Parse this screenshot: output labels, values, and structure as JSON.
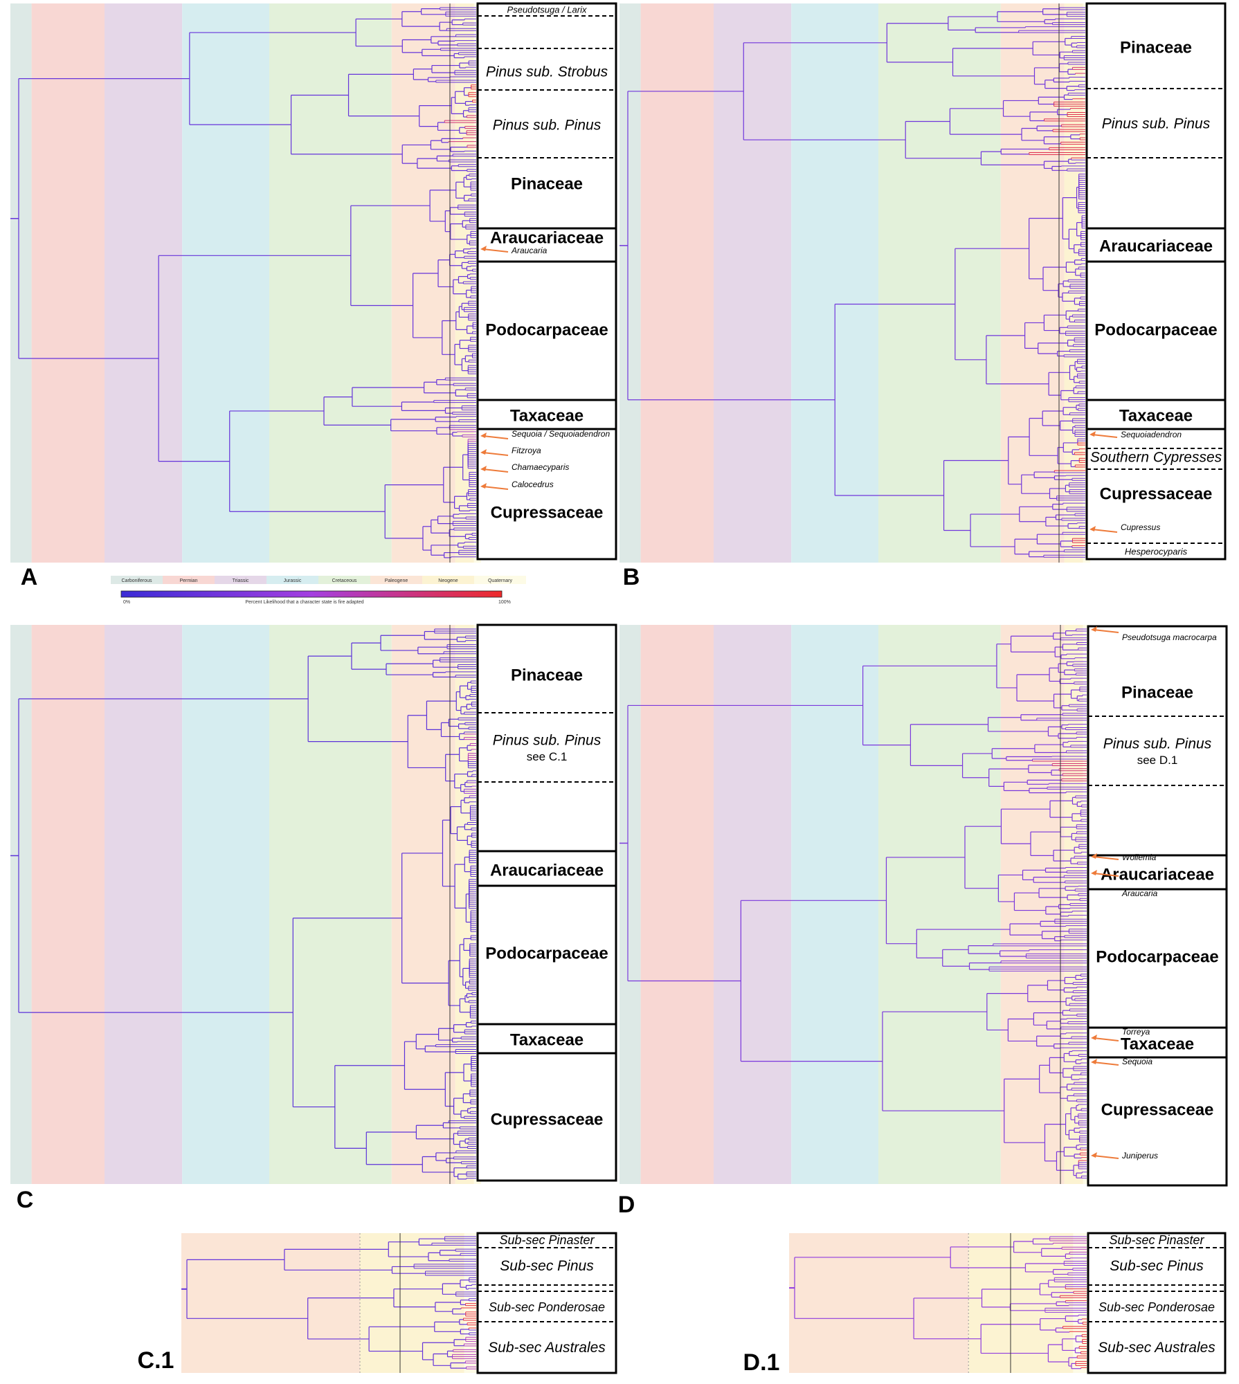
{
  "colors": {
    "carboniferous": "#dde9e6",
    "permian": "#f8d7d3",
    "triassic": "#e5d7e8",
    "jurassic": "#d6edf0",
    "cretaceous": "#e3f1da",
    "paleogene": "#fbe5d6",
    "neogene": "#fcf3d2",
    "quaternary": "#fdfbe6",
    "branch_low": "#3b2bd6",
    "branch_mid": "#a43fe0",
    "branch_high": "#ee2a2a",
    "arrow": "#ee7b3a"
  },
  "legend": {
    "periods": [
      "Carboniferous",
      "Permian",
      "Triassic",
      "Jurassic",
      "Cretaceous",
      "Paleogene",
      "Neogene",
      "Quaternary"
    ],
    "scale_min": "0%",
    "scale_max": "100%",
    "scale_caption": "Percent Likelihood that a character state is fire adapted"
  },
  "panels": [
    {
      "id": "A",
      "letter": "A",
      "clades": [
        {
          "label": "Pseudotsuga / Larix",
          "style": "italic-small"
        },
        {
          "label": "Pinus sub. Strobus",
          "style": "italic"
        },
        {
          "label": "Pinus sub. Pinus",
          "style": "italic"
        },
        {
          "label": "Pinaceae",
          "style": "bold"
        },
        {
          "label": "Araucariaceae",
          "style": "bold"
        },
        {
          "label": "Podocarpaceae",
          "style": "bold"
        },
        {
          "label": "Taxaceae",
          "style": "bold"
        },
        {
          "label": "Cupressaceae",
          "style": "bold"
        }
      ],
      "annotations": [
        "Araucaria",
        "Sequoia / Sequoiadendron",
        "Fitzroya",
        "Chamaecyparis",
        "Calocedrus"
      ]
    },
    {
      "id": "B",
      "letter": "B",
      "clades": [
        {
          "label": "Pinaceae",
          "style": "bold"
        },
        {
          "label": "Pinus sub. Pinus",
          "style": "italic"
        },
        {
          "label": "Araucariaceae",
          "style": "bold"
        },
        {
          "label": "Podocarpaceae",
          "style": "bold"
        },
        {
          "label": "Taxaceae",
          "style": "bold"
        },
        {
          "label": "Southern Cypresses",
          "style": "italic"
        },
        {
          "label": "Cupressaceae",
          "style": "bold"
        },
        {
          "label": "Hesperocyparis",
          "style": "italic-small"
        }
      ],
      "annotations": [
        "Sequoiadendron",
        "Cupressus"
      ]
    },
    {
      "id": "C",
      "letter": "C",
      "clades": [
        {
          "label": "Pinaceae",
          "style": "bold"
        },
        {
          "label": "Pinus sub. Pinus",
          "style": "italic"
        },
        {
          "label": "see C.1",
          "style": "plain"
        },
        {
          "label": "Araucariaceae",
          "style": "bold"
        },
        {
          "label": "Podocarpaceae",
          "style": "bold"
        },
        {
          "label": "Taxaceae",
          "style": "bold"
        },
        {
          "label": "Cupressaceae",
          "style": "bold"
        }
      ],
      "annotations": []
    },
    {
      "id": "D",
      "letter": "D",
      "clades": [
        {
          "label": "Pinaceae",
          "style": "bold"
        },
        {
          "label": "Pinus sub. Pinus",
          "style": "italic"
        },
        {
          "label": "see D.1",
          "style": "plain"
        },
        {
          "label": "Araucariaceae",
          "style": "bold"
        },
        {
          "label": "Podocarpaceae",
          "style": "bold"
        },
        {
          "label": "Taxaceae",
          "style": "bold"
        },
        {
          "label": "Cupressaceae",
          "style": "bold"
        }
      ],
      "annotations": [
        "Pseudotsuga macrocarpa",
        "Wollemia",
        "Araucaria",
        "Torreya",
        "Sequoia",
        "Juniperus"
      ]
    },
    {
      "id": "C1",
      "letter": "C.1",
      "clades": [
        {
          "label": "Sub-sec Pinaster",
          "style": "italic"
        },
        {
          "label": "Sub-sec Pinus",
          "style": "italic"
        },
        {
          "label": "Sub-sec Ponderosae",
          "style": "italic"
        },
        {
          "label": "Sub-sec Australes",
          "style": "italic"
        }
      ],
      "annotations": []
    },
    {
      "id": "D1",
      "letter": "D.1",
      "clades": [
        {
          "label": "Sub-sec Pinaster",
          "style": "italic"
        },
        {
          "label": "Sub-sec Pinus",
          "style": "italic"
        },
        {
          "label": "Sub-sec Ponderosae",
          "style": "italic"
        },
        {
          "label": "Sub-sec Australes",
          "style": "italic"
        }
      ],
      "annotations": []
    }
  ]
}
